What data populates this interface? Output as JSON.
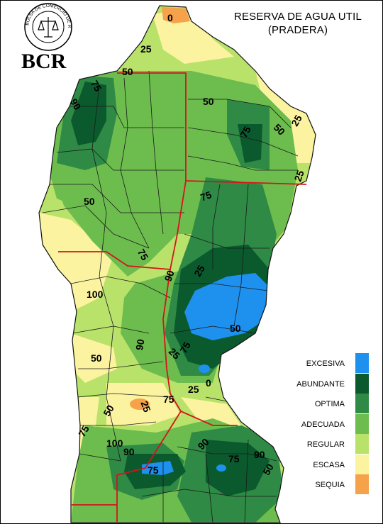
{
  "title": {
    "line1": "RESERVA DE AGUA UTIL",
    "line2": "(PRADERA)"
  },
  "logo": {
    "ring_text": "BOLSA DE COMERCIO DE ROSARIO",
    "abbrev": "BCR"
  },
  "legend": [
    {
      "label": "EXCESIVA",
      "color": "#1e90ee"
    },
    {
      "label": "ABUNDANTE",
      "color": "#0b5a2e"
    },
    {
      "label": "OPTIMA",
      "color": "#2f8a45"
    },
    {
      "label": "ADECUADA",
      "color": "#6dbd4e"
    },
    {
      "label": "REGULAR",
      "color": "#b9e26a"
    },
    {
      "label": "ESCASA",
      "color": "#fbf3a0"
    },
    {
      "label": "SEQUIA",
      "color": "#f5a24a"
    }
  ],
  "contour_labels": [
    "0",
    "25",
    "50",
    "75",
    "90",
    "50",
    "75",
    "25",
    "50",
    "25",
    "75",
    "50",
    "75",
    "90",
    "25",
    "100",
    "50",
    "90",
    "75",
    "25",
    "50",
    "0",
    "25",
    "75",
    "25",
    "50",
    "75",
    "100",
    "90",
    "90",
    "75",
    "90",
    "75",
    "50"
  ]
}
